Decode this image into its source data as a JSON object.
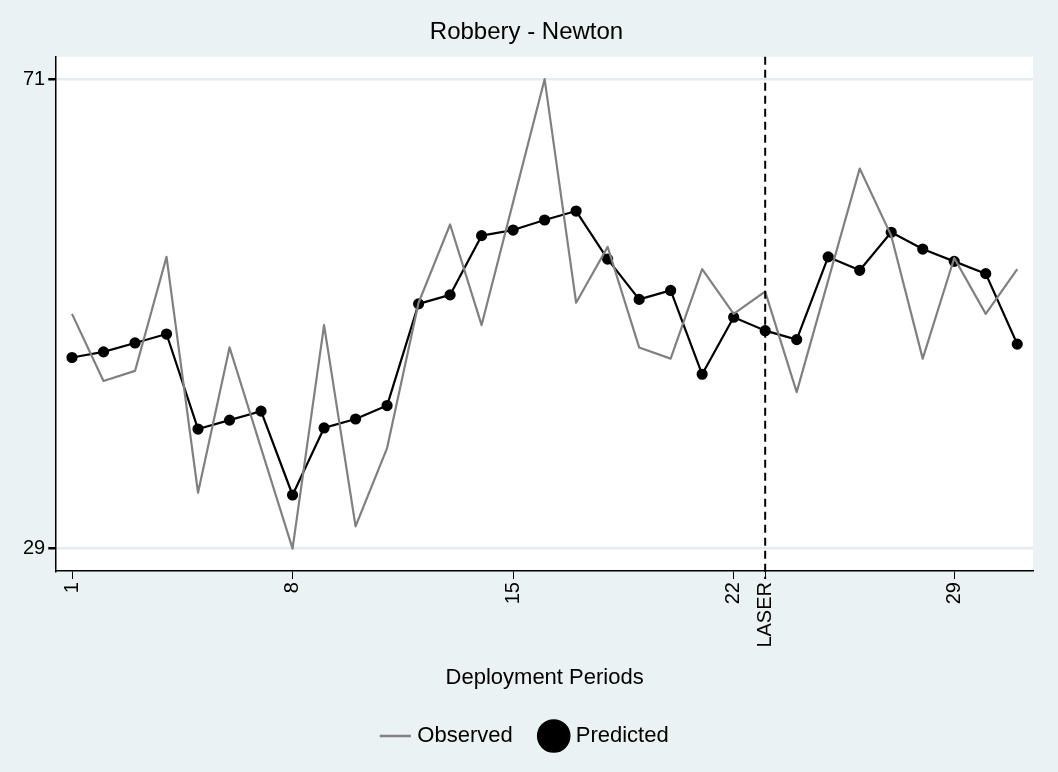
{
  "chart_data": {
    "type": "line",
    "title": "Robbery - Newton",
    "xlabel": "Deployment Periods",
    "x": [
      1,
      2,
      3,
      4,
      5,
      6,
      7,
      8,
      9,
      10,
      11,
      12,
      13,
      14,
      15,
      16,
      17,
      18,
      19,
      20,
      21,
      22,
      23,
      24,
      25,
      26,
      27,
      28,
      29,
      30,
      31
    ],
    "series": [
      {
        "name": "Observed",
        "color": "#808080",
        "marker": "none",
        "values": [
          50,
          44,
          44.9,
          55.1,
          34,
          47,
          38,
          29,
          49,
          31,
          38,
          51,
          58,
          49,
          60,
          71,
          51,
          56,
          47,
          46,
          54,
          50,
          52,
          43,
          53,
          63,
          57,
          46,
          55,
          50,
          54
        ]
      },
      {
        "name": "Predicted",
        "color": "#000000",
        "marker": "circle",
        "values": [
          46.1,
          46.6,
          47.4,
          48.2,
          39.7,
          40.5,
          41.3,
          33.8,
          39.8,
          40.6,
          41.8,
          50.9,
          51.7,
          57,
          57.5,
          58.4,
          59.2,
          54.9,
          51.3,
          52.1,
          44.6,
          49.7,
          48.5,
          47.7,
          55.1,
          53.9,
          57.3,
          55.8,
          54.7,
          53.6,
          47.3
        ]
      }
    ],
    "xlim": [
      0.5,
      31.5
    ],
    "xticks": [
      1,
      8,
      15,
      22,
      29
    ],
    "ylim": [
      27,
      73
    ],
    "yticks": [
      29,
      71
    ],
    "ref_lines": [
      {
        "axis": "x",
        "value": 23,
        "label": "LASER",
        "color": "#000000",
        "line_style": "dashed"
      }
    ],
    "grid": "y",
    "legend": "bottom",
    "line_style": "solid"
  }
}
